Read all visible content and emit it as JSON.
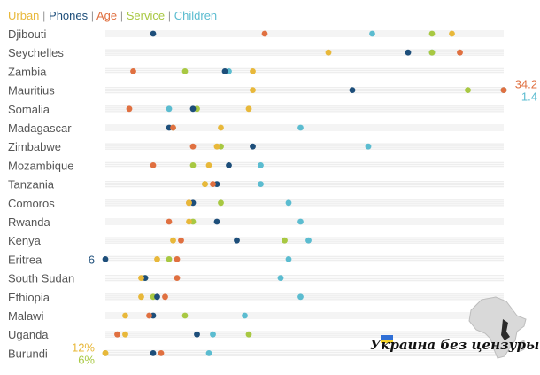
{
  "legend": {
    "items": [
      {
        "label": "Urban",
        "color": "#e8b83a"
      },
      {
        "label": "Phones",
        "color": "#1d4e7a"
      },
      {
        "label": "Age",
        "color": "#e07040"
      },
      {
        "label": "Service",
        "color": "#a8c842"
      },
      {
        "label": "Children",
        "color": "#5bbcd0"
      }
    ],
    "separator": "|"
  },
  "chart_data": {
    "type": "scatter",
    "title": "",
    "grid": false,
    "countries": [
      "Djibouti",
      "Seychelles",
      "Zambia",
      "Mauritius",
      "Somalia",
      "Madagascar",
      "Zimbabwe",
      "Mozambique",
      "Tanzania",
      "Comoros",
      "Rwanda",
      "Kenya",
      "Eritrea",
      "South Sudan",
      "Ethiopia",
      "Malawi",
      "Uganda",
      "Burundi"
    ],
    "series": [
      {
        "name": "Urban",
        "color": "#e8b83a",
        "values": [
          0.87,
          0.56,
          0.37,
          0.37,
          0.36,
          0.29,
          0.28,
          0.26,
          0.25,
          0.21,
          0.21,
          0.17,
          0.13,
          0.09,
          0.09,
          0.05,
          0.05,
          0.0
        ]
      },
      {
        "name": "Phones",
        "color": "#1d4e7a",
        "values": [
          0.12,
          0.76,
          0.3,
          0.62,
          0.22,
          0.16,
          0.37,
          0.31,
          0.28,
          0.22,
          0.28,
          0.33,
          0.0,
          0.1,
          0.13,
          0.12,
          0.23,
          0.12
        ]
      },
      {
        "name": "Age",
        "color": "#e07040",
        "values": [
          0.4,
          0.89,
          0.07,
          1.0,
          0.06,
          0.17,
          0.22,
          0.12,
          0.27,
          0.21,
          0.16,
          0.19,
          0.18,
          0.18,
          0.15,
          0.11,
          0.03,
          0.14
        ]
      },
      {
        "name": "Service",
        "color": "#a8c842",
        "values": [
          0.82,
          0.82,
          0.2,
          0.91,
          0.23,
          0.17,
          0.29,
          0.22,
          0.25,
          0.29,
          0.22,
          0.45,
          0.16,
          0.1,
          0.12,
          0.2,
          0.36,
          0.0
        ]
      },
      {
        "name": "Children",
        "color": "#5bbcd0",
        "values": [
          0.67,
          0.82,
          0.31,
          1.0,
          0.16,
          0.49,
          0.66,
          0.39,
          0.39,
          0.46,
          0.49,
          0.51,
          0.46,
          0.44,
          0.49,
          0.35,
          0.27,
          0.26
        ]
      }
    ],
    "annotations": [
      {
        "country": "Mauritius",
        "text": "34.2",
        "color": "#e07040"
      },
      {
        "country": "Mauritius",
        "text": "1.4",
        "color": "#5bbcd0"
      },
      {
        "country": "Eritrea",
        "text": "6",
        "color": "#1d4e7a"
      },
      {
        "country": "Burundi",
        "text": "12%",
        "color": "#e8b83a"
      },
      {
        "country": "Burundi",
        "text": "6%",
        "color": "#a8c842"
      }
    ]
  },
  "watermark": {
    "text": "Украина без цензуры"
  }
}
